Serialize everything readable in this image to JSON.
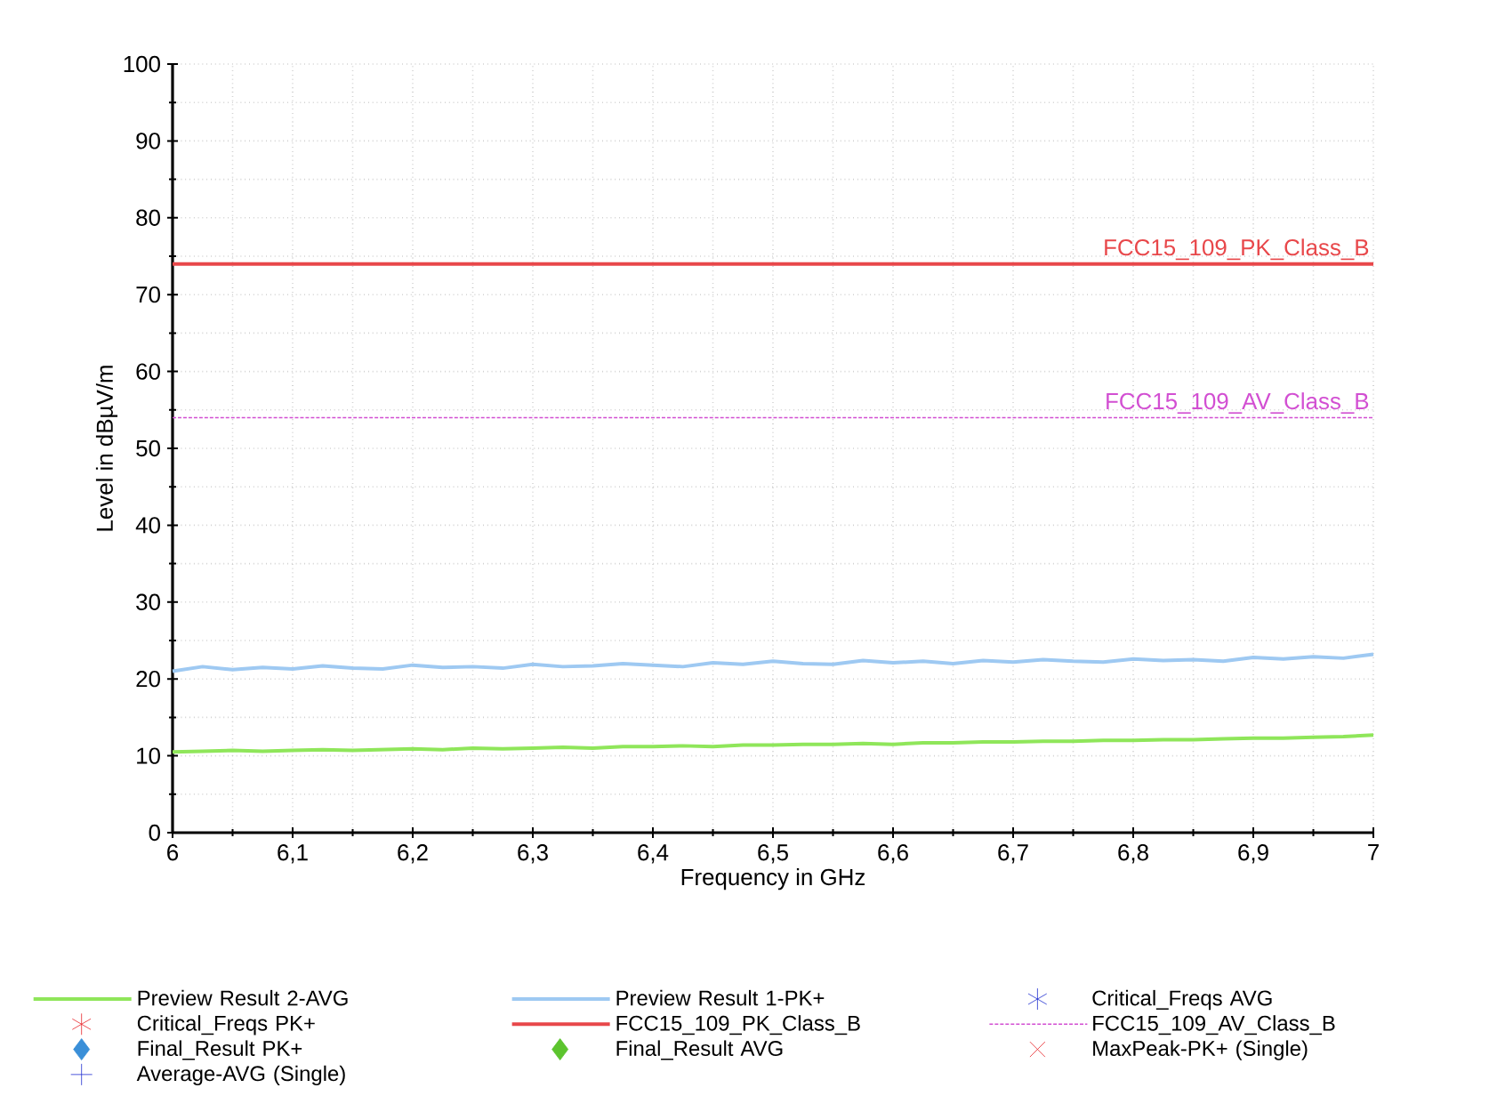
{
  "chart_data": {
    "type": "line",
    "xlabel": "Frequency in GHz",
    "ylabel": "Level in dBµV/m",
    "series": [
      {
        "name": "Preview Result 2-AVG",
        "color": "#8fe65a",
        "x": [
          6.0,
          6.025,
          6.05,
          6.075,
          6.1,
          6.125,
          6.15,
          6.175,
          6.2,
          6.225,
          6.25,
          6.275,
          6.3,
          6.325,
          6.35,
          6.375,
          6.4,
          6.425,
          6.45,
          6.475,
          6.5,
          6.525,
          6.55,
          6.575,
          6.6,
          6.625,
          6.65,
          6.675,
          6.7,
          6.725,
          6.75,
          6.775,
          6.8,
          6.825,
          6.85,
          6.875,
          6.9,
          6.925,
          6.95,
          6.975,
          7.0
        ],
        "values": [
          10.5,
          10.6,
          10.7,
          10.6,
          10.7,
          10.8,
          10.7,
          10.8,
          10.9,
          10.8,
          11.0,
          10.9,
          11.0,
          11.1,
          11.0,
          11.2,
          11.2,
          11.3,
          11.2,
          11.4,
          11.4,
          11.5,
          11.5,
          11.6,
          11.5,
          11.7,
          11.7,
          11.8,
          11.8,
          11.9,
          11.9,
          12.0,
          12.0,
          12.1,
          12.1,
          12.2,
          12.3,
          12.3,
          12.4,
          12.5,
          12.7
        ]
      },
      {
        "name": "Preview Result 1-PK+",
        "color": "#9ec9f2",
        "x": [
          6.0,
          6.025,
          6.05,
          6.075,
          6.1,
          6.125,
          6.15,
          6.175,
          6.2,
          6.225,
          6.25,
          6.275,
          6.3,
          6.325,
          6.35,
          6.375,
          6.4,
          6.425,
          6.45,
          6.475,
          6.5,
          6.525,
          6.55,
          6.575,
          6.6,
          6.625,
          6.65,
          6.675,
          6.7,
          6.725,
          6.75,
          6.775,
          6.8,
          6.825,
          6.85,
          6.875,
          6.9,
          6.925,
          6.95,
          6.975,
          7.0
        ],
        "values": [
          21.0,
          21.6,
          21.2,
          21.5,
          21.3,
          21.7,
          21.4,
          21.3,
          21.8,
          21.5,
          21.6,
          21.4,
          21.9,
          21.6,
          21.7,
          22.0,
          21.8,
          21.6,
          22.1,
          21.9,
          22.3,
          22.0,
          21.9,
          22.4,
          22.1,
          22.3,
          22.0,
          22.4,
          22.2,
          22.5,
          22.3,
          22.2,
          22.6,
          22.4,
          22.5,
          22.3,
          22.8,
          22.6,
          22.9,
          22.7,
          23.2
        ]
      },
      {
        "name": "Critical_Freqs AVG",
        "type": "scatter",
        "marker": "star",
        "color": "#1f2fd0"
      },
      {
        "name": "Critical_Freqs PK+",
        "type": "scatter",
        "marker": "star",
        "color": "#e8242a"
      },
      {
        "name": "FCC15_109_PK_Class_B",
        "color": "#e8474a",
        "x": [
          6,
          7
        ],
        "values": [
          74,
          74
        ]
      },
      {
        "name": "FCC15_109_AV_Class_B",
        "color": "#d24fd2",
        "line_style": "dashed",
        "x": [
          6,
          7
        ],
        "values": [
          54,
          54
        ]
      },
      {
        "name": "Final_Result PK+",
        "type": "scatter",
        "marker": "diamond",
        "color": "#3a8fd8"
      },
      {
        "name": "Final_Result AVG",
        "type": "scatter",
        "marker": "diamond",
        "color": "#5cc42e"
      },
      {
        "name": "MaxPeak-PK+ (Single)",
        "type": "scatter",
        "marker": "cross",
        "color": "#e8242a"
      },
      {
        "name": "Average-AVG (Single)",
        "type": "scatter",
        "marker": "plus",
        "color": "#1f2fd0"
      }
    ],
    "annotations": [
      {
        "text": "FCC15_109_PK_Class_B",
        "x": 7,
        "y": 74
      },
      {
        "text": "FCC15_109_AV_Class_B",
        "x": 7,
        "y": 54
      }
    ],
    "xlim": [
      6,
      7
    ],
    "xticks": [
      6,
      {
        "value": 6.1,
        "label": "6,1"
      },
      {
        "value": 6.2,
        "label": "6,2"
      },
      {
        "value": 6.3,
        "label": "6,3"
      },
      {
        "value": 6.4,
        "label": "6,4"
      },
      {
        "value": 6.5,
        "label": "6,5"
      },
      {
        "value": 6.6,
        "label": "6,6"
      },
      {
        "value": 6.7,
        "label": "6,7"
      },
      {
        "value": 6.8,
        "label": "6,8"
      },
      {
        "value": 6.9,
        "label": "6,9"
      },
      7
    ],
    "ylim": [
      0,
      100
    ],
    "yticks": [
      0,
      10,
      20,
      30,
      40,
      50,
      60,
      70,
      80,
      90,
      100
    ],
    "grid": true,
    "legend": "bottom"
  }
}
